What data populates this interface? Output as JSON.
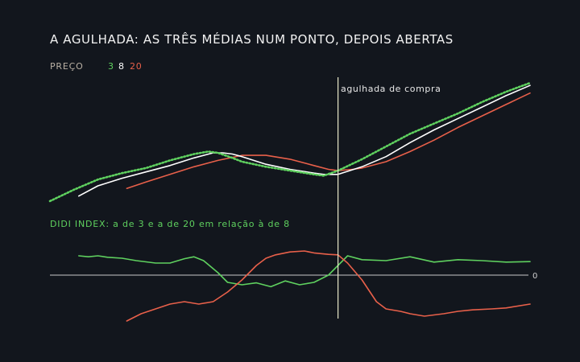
{
  "title": "A AGULHADA: AS TRÊS MÉDIAS NUM PONTO, DEPOIS ABERTAS",
  "legend": {
    "label": "PREÇO",
    "items": [
      {
        "text": "3",
        "color": "#5fd15f"
      },
      {
        "text": "8",
        "color": "#ffffff"
      },
      {
        "text": "20",
        "color": "#e8604a"
      }
    ]
  },
  "annotation": "agulhada de compra",
  "didi_label": "DIDI INDEX: a de 3 e a de 20 em relação à de 8",
  "zero_label": "0",
  "colors": {
    "background": "#12161d",
    "ma3": "#5fd15f",
    "ma8": "#ffffff",
    "ma20": "#e8604a",
    "axis": "#e8e8e8",
    "vline": "#e8e8c8"
  },
  "chart_data": [
    {
      "type": "line",
      "x_range": [
        0,
        100
      ],
      "ylim": [
        0,
        100
      ],
      "event_x": 60,
      "series": [
        {
          "name": "3",
          "style": "dotted",
          "color": "#5fd15f",
          "x": [
            0,
            5,
            10,
            15,
            20,
            25,
            30,
            33,
            35,
            38,
            40,
            45,
            50,
            55,
            57,
            60,
            65,
            70,
            75,
            80,
            85,
            90,
            95,
            100
          ],
          "y": [
            0,
            9,
            17,
            22,
            26,
            32,
            37,
            39,
            38,
            34,
            31,
            27,
            24,
            21,
            20,
            24,
            33,
            43,
            53,
            61,
            69,
            78,
            86,
            93
          ]
        },
        {
          "name": "8",
          "style": "solid",
          "color": "#ffffff",
          "x": [
            6,
            10,
            15,
            20,
            25,
            30,
            34,
            36,
            38,
            40,
            45,
            50,
            55,
            57,
            60,
            65,
            70,
            75,
            80,
            85,
            90,
            95,
            100
          ],
          "y": [
            4,
            12,
            18,
            23,
            28,
            34,
            38,
            38,
            37,
            35,
            29,
            25,
            22,
            21,
            21,
            27,
            35,
            46,
            56,
            65,
            74,
            83,
            91
          ]
        },
        {
          "name": "20",
          "style": "solid",
          "color": "#e8604a",
          "x": [
            16,
            20,
            25,
            30,
            35,
            40,
            45,
            50,
            55,
            58,
            60,
            63,
            65,
            70,
            75,
            80,
            85,
            90,
            95,
            100
          ],
          "y": [
            10,
            15,
            21,
            27,
            32,
            36,
            36,
            33,
            28,
            25,
            24,
            25,
            26,
            31,
            39,
            48,
            58,
            67,
            76,
            85
          ]
        }
      ]
    },
    {
      "type": "line",
      "x_range": [
        0,
        100
      ],
      "ylim": [
        -100,
        100
      ],
      "zero_line": true,
      "series": [
        {
          "name": "3",
          "color": "#5fd15f",
          "x": [
            6,
            8,
            10,
            12,
            15,
            18,
            22,
            25,
            28,
            30,
            32,
            35,
            37,
            40,
            43,
            46,
            49,
            52,
            55,
            58,
            60,
            62,
            65,
            70,
            75,
            80,
            85,
            90,
            95,
            100
          ],
          "y": [
            40,
            38,
            40,
            37,
            35,
            30,
            25,
            25,
            34,
            38,
            30,
            5,
            -15,
            -20,
            -16,
            -24,
            -12,
            -20,
            -15,
            0,
            20,
            40,
            32,
            30,
            38,
            27,
            32,
            30,
            27,
            28
          ]
        },
        {
          "name": "20",
          "color": "#e8604a",
          "x": [
            16,
            19,
            22,
            25,
            28,
            31,
            34,
            37,
            40,
            43,
            45,
            47,
            50,
            53,
            55,
            58,
            60,
            62,
            65,
            68,
            70,
            73,
            75,
            78,
            82,
            85,
            88,
            92,
            95,
            100
          ],
          "y": [
            -95,
            -80,
            -70,
            -60,
            -55,
            -60,
            -55,
            -35,
            -10,
            20,
            35,
            42,
            48,
            50,
            46,
            43,
            42,
            25,
            -10,
            -55,
            -70,
            -75,
            -80,
            -85,
            -80,
            -75,
            -72,
            -70,
            -68,
            -60
          ]
        }
      ]
    }
  ]
}
